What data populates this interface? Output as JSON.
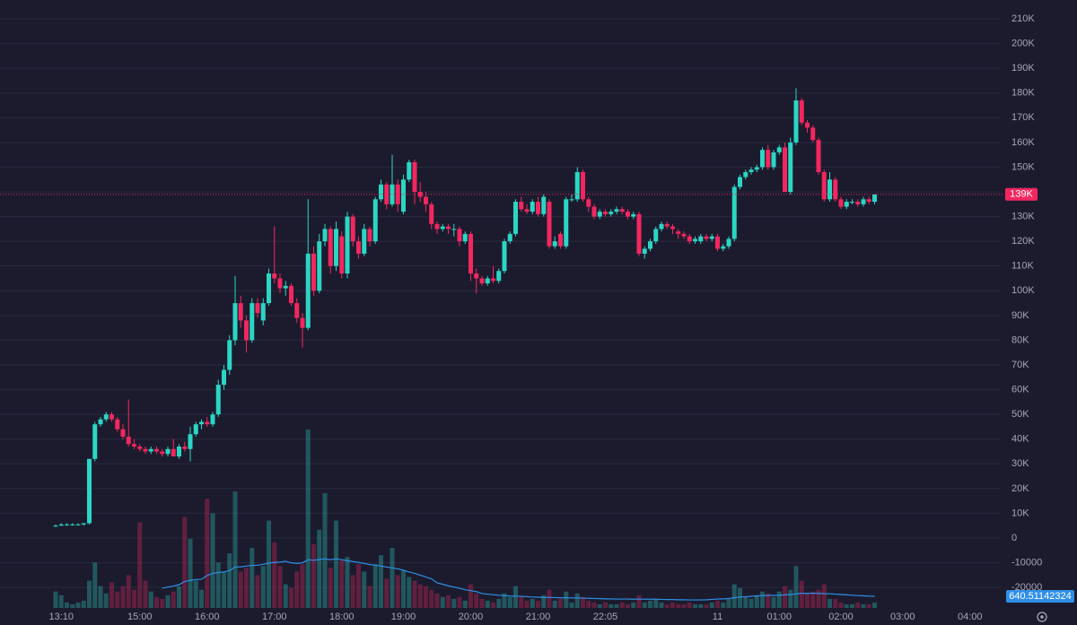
{
  "chart_data": {
    "type": "candlestick",
    "categories": [
      null,
      "13:10",
      null,
      null,
      null,
      null,
      null,
      null,
      null,
      null,
      null,
      null,
      null,
      null,
      null,
      "15:00",
      null,
      null,
      null,
      null,
      null,
      null,
      null,
      null,
      null,
      null,
      null,
      "16:00",
      null,
      null,
      null,
      null,
      null,
      null,
      null,
      null,
      null,
      null,
      null,
      "17:00",
      null,
      null,
      null,
      null,
      null,
      null,
      null,
      null,
      null,
      null,
      null,
      "18:00",
      null,
      null,
      null,
      null,
      null,
      null,
      null,
      null,
      null,
      null,
      "19:00",
      null,
      null,
      null,
      null,
      null,
      null,
      null,
      null,
      null,
      null,
      null,
      "20:00",
      null,
      null,
      null,
      null,
      null,
      null,
      null,
      null,
      null,
      null,
      null,
      "21:00",
      null,
      null,
      null,
      null,
      null,
      null,
      null,
      null,
      null,
      null,
      null,
      "22:05",
      null,
      null,
      null,
      null,
      null,
      null,
      null,
      null,
      null,
      null,
      null,
      null,
      null,
      null,
      null,
      null,
      null,
      null,
      null,
      "11",
      null,
      null,
      null,
      null,
      null,
      null,
      null,
      null,
      null,
      null,
      "01:00",
      null,
      null,
      null,
      null,
      null,
      null,
      null,
      null,
      null,
      null,
      "02:00",
      null,
      null,
      null,
      null,
      null,
      null,
      null,
      null,
      null,
      null,
      "03:00",
      null,
      null,
      null,
      null,
      null,
      null,
      null,
      null,
      null,
      null,
      null,
      "04:00"
    ],
    "candles": [
      [
        5000,
        5500,
        4500,
        5000
      ],
      [
        5000,
        6000,
        5000,
        5500
      ],
      [
        5500,
        6000,
        5000,
        5500
      ],
      [
        5500,
        6000,
        5000,
        5500
      ],
      [
        5500,
        6000,
        5000,
        5500
      ],
      [
        5500,
        6000,
        5000,
        6000
      ],
      [
        6000,
        32000,
        5500,
        32000
      ],
      [
        32000,
        47000,
        31000,
        46000
      ],
      [
        46000,
        49000,
        45000,
        48000
      ],
      [
        48000,
        51000,
        47000,
        50000
      ],
      [
        50000,
        51000,
        47000,
        48000
      ],
      [
        48000,
        49000,
        43000,
        44000
      ],
      [
        44000,
        46000,
        40000,
        41000
      ],
      [
        41000,
        56000,
        37000,
        38000
      ],
      [
        38000,
        40000,
        36000,
        37000
      ],
      [
        37000,
        38000,
        35000,
        36000
      ],
      [
        36000,
        37000,
        34000,
        35000
      ],
      [
        35000,
        37000,
        34000,
        36000
      ],
      [
        36000,
        37000,
        34000,
        35000
      ],
      [
        35000,
        36000,
        33000,
        34000
      ],
      [
        34000,
        37000,
        33000,
        36000
      ],
      [
        36000,
        40000,
        33000,
        33000
      ],
      [
        33000,
        38000,
        32000,
        37000
      ],
      [
        37000,
        39000,
        35000,
        36000
      ],
      [
        36000,
        45000,
        31000,
        42000
      ],
      [
        42000,
        47000,
        41000,
        46000
      ],
      [
        46000,
        48000,
        44000,
        47000
      ],
      [
        47000,
        49000,
        45000,
        46000
      ],
      [
        46000,
        51000,
        45000,
        50000
      ],
      [
        50000,
        64000,
        49000,
        62000
      ],
      [
        62000,
        70000,
        60000,
        68000
      ],
      [
        68000,
        82000,
        66000,
        80000
      ],
      [
        80000,
        106000,
        78000,
        95000
      ],
      [
        95000,
        98000,
        85000,
        88000
      ],
      [
        88000,
        90000,
        75000,
        80000
      ],
      [
        80000,
        97000,
        79000,
        95000
      ],
      [
        95000,
        97000,
        89000,
        91000
      ],
      [
        88000,
        97000,
        86000,
        95000
      ],
      [
        95000,
        109000,
        94000,
        107000
      ],
      [
        107000,
        126000,
        103000,
        105000
      ],
      [
        105000,
        107000,
        99000,
        101000
      ],
      [
        101000,
        104000,
        98000,
        102000
      ],
      [
        102000,
        103000,
        94000,
        95000
      ],
      [
        95000,
        97000,
        87000,
        89000
      ],
      [
        89000,
        91000,
        77000,
        85000
      ],
      [
        85000,
        137000,
        84000,
        115000
      ],
      [
        115000,
        118000,
        98000,
        100000
      ],
      [
        100000,
        123000,
        99000,
        120000
      ],
      [
        120000,
        127000,
        118000,
        125000
      ],
      [
        125000,
        126000,
        107000,
        110000
      ],
      [
        110000,
        128000,
        108000,
        125000
      ],
      [
        122000,
        124000,
        105000,
        107000
      ],
      [
        107000,
        132000,
        105000,
        130000
      ],
      [
        130000,
        131000,
        118000,
        120000
      ],
      [
        120000,
        122000,
        113000,
        115000
      ],
      [
        115000,
        127000,
        114000,
        125000
      ],
      [
        125000,
        126000,
        118000,
        120000
      ],
      [
        120000,
        138000,
        119000,
        137000
      ],
      [
        137000,
        145000,
        136000,
        143000
      ],
      [
        143000,
        144000,
        133000,
        135000
      ],
      [
        135000,
        155000,
        134000,
        143000
      ],
      [
        143000,
        145000,
        132000,
        135000
      ],
      [
        132000,
        147000,
        131000,
        145000
      ],
      [
        145000,
        153000,
        144000,
        152000
      ],
      [
        152000,
        153000,
        135000,
        140000
      ],
      [
        140000,
        144000,
        136000,
        138000
      ],
      [
        138000,
        140000,
        132000,
        135000
      ],
      [
        135000,
        136000,
        125000,
        127000
      ],
      [
        127000,
        128000,
        123000,
        125000
      ],
      [
        125000,
        127000,
        124000,
        126000
      ],
      [
        126000,
        127000,
        123000,
        125000
      ],
      [
        125000,
        127000,
        122000,
        125000
      ],
      [
        125000,
        126000,
        118000,
        120000
      ],
      [
        120000,
        124000,
        119000,
        123000
      ],
      [
        123000,
        124000,
        104000,
        107000
      ],
      [
        107000,
        109000,
        99000,
        105000
      ],
      [
        105000,
        106000,
        102000,
        103000
      ],
      [
        103000,
        106000,
        102000,
        105000
      ],
      [
        105000,
        110000,
        103000,
        104000
      ],
      [
        104000,
        109000,
        103000,
        108000
      ],
      [
        108000,
        121000,
        107000,
        120000
      ],
      [
        120000,
        124000,
        119000,
        123000
      ],
      [
        123000,
        137000,
        122000,
        136000
      ],
      [
        136000,
        138000,
        132000,
        133000
      ],
      [
        133000,
        135000,
        131000,
        132000
      ],
      [
        132000,
        137000,
        131000,
        136000
      ],
      [
        136000,
        138000,
        130000,
        131000
      ],
      [
        131000,
        139000,
        130000,
        138000
      ],
      [
        136000,
        137000,
        117000,
        118000
      ],
      [
        118000,
        122000,
        117000,
        120000
      ],
      [
        123000,
        124000,
        117000,
        118000
      ],
      [
        118000,
        138000,
        117000,
        137000
      ],
      [
        137000,
        139000,
        136000,
        137000
      ],
      [
        137000,
        150000,
        136000,
        148000
      ],
      [
        148000,
        149000,
        136000,
        137000
      ],
      [
        137000,
        138000,
        132000,
        134000
      ],
      [
        134000,
        135000,
        129000,
        130000
      ],
      [
        130000,
        133000,
        129000,
        132000
      ],
      [
        132000,
        133000,
        130000,
        131000
      ],
      [
        131000,
        133000,
        130000,
        132000
      ],
      [
        132000,
        134000,
        131000,
        133000
      ],
      [
        133000,
        134000,
        131000,
        132000
      ],
      [
        132000,
        133000,
        129000,
        130000
      ],
      [
        130000,
        132000,
        129000,
        131000
      ],
      [
        131000,
        132000,
        114000,
        115000
      ],
      [
        115000,
        118000,
        113000,
        117000
      ],
      [
        117000,
        121000,
        116000,
        120000
      ],
      [
        120000,
        126000,
        119000,
        125000
      ],
      [
        125000,
        128000,
        124000,
        127000
      ],
      [
        127000,
        128000,
        125000,
        126000
      ],
      [
        126000,
        127000,
        123000,
        125000
      ],
      [
        124000,
        125000,
        121000,
        123000
      ],
      [
        123000,
        124000,
        121000,
        122000
      ],
      [
        122000,
        123000,
        119000,
        120000
      ],
      [
        120000,
        122000,
        119000,
        121000
      ],
      [
        120000,
        123000,
        119000,
        122000
      ],
      [
        122000,
        123000,
        120000,
        121000
      ],
      [
        121000,
        123000,
        120000,
        122000
      ],
      [
        122000,
        123000,
        116000,
        117000
      ],
      [
        117000,
        119000,
        116000,
        118000
      ],
      [
        118000,
        122000,
        117000,
        121000
      ],
      [
        121000,
        143000,
        120000,
        142000
      ],
      [
        142000,
        147000,
        141000,
        146000
      ],
      [
        146000,
        149000,
        145000,
        148000
      ],
      [
        148000,
        150000,
        147000,
        149000
      ],
      [
        149000,
        151000,
        148000,
        150000
      ],
      [
        150000,
        158000,
        149000,
        157000
      ],
      [
        157000,
        159000,
        149000,
        150000
      ],
      [
        150000,
        157000,
        149000,
        156000
      ],
      [
        156000,
        159000,
        155000,
        158000
      ],
      [
        158000,
        160000,
        140000,
        140000
      ],
      [
        140000,
        162000,
        139000,
        160000
      ],
      [
        160000,
        182000,
        159000,
        177000
      ],
      [
        177000,
        178000,
        167000,
        168000
      ],
      [
        168000,
        169000,
        164000,
        166000
      ],
      [
        166000,
        167000,
        160000,
        161000
      ],
      [
        161000,
        162000,
        147000,
        148000
      ],
      [
        148000,
        149000,
        136000,
        137000
      ],
      [
        137000,
        148000,
        136000,
        145000
      ],
      [
        145000,
        146000,
        136000,
        137000
      ],
      [
        137000,
        138000,
        133000,
        134000
      ],
      [
        134000,
        137000,
        133000,
        136000
      ],
      [
        136000,
        137000,
        135000,
        136000
      ],
      [
        136000,
        137000,
        134000,
        135000
      ],
      [
        135000,
        138000,
        134000,
        137000
      ],
      [
        137000,
        138000,
        135000,
        136000
      ],
      [
        136000,
        139000,
        135000,
        139000
      ],
      null,
      null,
      null,
      null,
      null,
      null,
      null,
      null,
      null,
      null,
      null,
      null,
      null,
      null,
      null,
      null,
      null
    ],
    "volume": [
      900,
      700,
      300,
      200,
      300,
      400,
      1500,
      2500,
      1200,
      800,
      1400,
      900,
      1200,
      1800,
      1000,
      4700,
      1500,
      900,
      600,
      500,
      700,
      900,
      1200,
      5000,
      3800,
      1500,
      1000,
      6000,
      5200,
      2500,
      2000,
      3000,
      6400,
      2000,
      2200,
      3300,
      1800,
      2300,
      4800,
      3600,
      2300,
      1300,
      1100,
      2000,
      2400,
      9800,
      3500,
      4300,
      6300,
      2200,
      4800,
      2600,
      2800,
      1800,
      2400,
      2000,
      1200,
      2400,
      2900,
      1600,
      3300,
      1800,
      2100,
      1700,
      1500,
      1300,
      1200,
      1000,
      800,
      600,
      700,
      500,
      600,
      400,
      1300,
      800,
      500,
      400,
      300,
      500,
      800,
      600,
      1200,
      600,
      400,
      500,
      400,
      700,
      1000,
      400,
      500,
      900,
      300,
      800,
      600,
      400,
      300,
      200,
      300,
      200,
      200,
      300,
      200,
      300,
      700,
      300,
      400,
      500,
      300,
      200,
      300,
      200,
      200,
      300,
      200,
      200,
      200,
      300,
      400,
      300,
      500,
      1300,
      1100,
      600,
      500,
      700,
      900,
      800,
      600,
      900,
      1200,
      1000,
      2300,
      1500,
      800,
      900,
      1000,
      1300,
      500,
      500,
      300,
      200,
      200,
      300,
      200,
      200,
      300,
      null,
      null,
      null,
      null,
      null,
      null,
      null,
      null,
      null,
      null,
      null,
      null,
      null,
      null,
      null,
      null,
      null
    ],
    "volume_ma": {
      "values": [
        null,
        null,
        null,
        null,
        null,
        null,
        null,
        null,
        null,
        null,
        null,
        null,
        null,
        null,
        null,
        null,
        null,
        null,
        null,
        1080,
        1150,
        1200,
        1280,
        1450,
        1520,
        1560,
        1580,
        1780,
        1900,
        1950,
        1980,
        2050,
        2250,
        2260,
        2300,
        2330,
        2350,
        2400,
        2460,
        2500,
        2520,
        2560,
        2480,
        2450,
        2480,
        2650,
        2620,
        2660,
        2700,
        2650,
        2700,
        2650,
        2600,
        2550,
        2500,
        2450,
        2380,
        2350,
        2300,
        2250,
        2200,
        2150,
        2070,
        1980,
        1900,
        1800,
        1700,
        1600,
        1380,
        1300,
        1220,
        1150,
        1080,
        1000,
        950,
        900,
        790,
        760,
        730,
        700,
        680,
        660,
        650,
        640,
        620,
        600,
        590,
        580,
        580,
        570,
        560,
        560,
        550,
        550,
        540,
        530,
        520,
        510,
        500,
        500,
        490,
        490,
        490,
        480,
        490,
        480,
        480,
        480,
        470,
        460,
        460,
        450,
        450,
        440,
        440,
        440,
        450,
        470,
        490,
        500,
        520,
        560,
        600,
        620,
        640,
        660,
        680,
        690,
        690,
        700,
        720,
        740,
        780,
        800,
        800,
        810,
        800,
        790,
        780,
        760,
        740,
        720,
        700,
        680,
        665,
        650,
        640.51142324,
        null,
        null,
        null,
        null,
        null,
        null,
        null,
        null,
        null,
        null,
        null,
        null,
        null,
        null,
        null,
        null,
        null
      ]
    },
    "colors": {
      "up": "#2bd6c4",
      "down": "#f2275f",
      "ma": "#2f8fe6"
    },
    "ylim": [
      -28290,
      217620
    ],
    "yticks": [
      {
        "value": 210000,
        "label": "210K"
      },
      {
        "value": 200000,
        "label": "200K"
      },
      {
        "value": 190000,
        "label": "190K"
      },
      {
        "value": 180000,
        "label": "180K"
      },
      {
        "value": 170000,
        "label": "170K"
      },
      {
        "value": 160000,
        "label": "160K"
      },
      {
        "value": 150000,
        "label": "150K"
      },
      {
        "value": 140000,
        "label": "140K"
      },
      {
        "value": 130000,
        "label": "130K"
      },
      {
        "value": 120000,
        "label": "120K"
      },
      {
        "value": 110000,
        "label": "110K"
      },
      {
        "value": 100000,
        "label": "100K"
      },
      {
        "value": 90000,
        "label": "90K"
      },
      {
        "value": 80000,
        "label": "80K"
      },
      {
        "value": 70000,
        "label": "70K"
      },
      {
        "value": 60000,
        "label": "60K"
      },
      {
        "value": 50000,
        "label": "50K"
      },
      {
        "value": 40000,
        "label": "40K"
      },
      {
        "value": 30000,
        "label": "30K"
      },
      {
        "value": 20000,
        "label": "20K"
      },
      {
        "value": 10000,
        "label": "10K"
      },
      0,
      -10000,
      -20000
    ],
    "y2lim": [
      0,
      33400
    ],
    "last_price": {
      "value": 139000,
      "label": "139K"
    },
    "grid": true
  }
}
